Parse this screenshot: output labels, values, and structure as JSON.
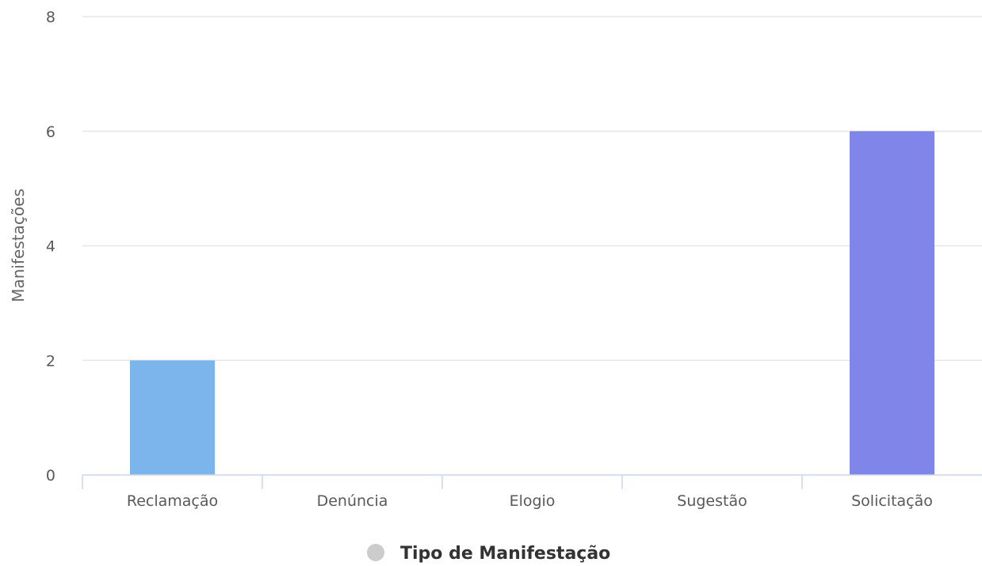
{
  "chart_data": {
    "type": "bar",
    "categories": [
      "Reclamação",
      "Denúncia",
      "Elogio",
      "Sugestão",
      "Solicitação"
    ],
    "values": [
      2,
      0,
      0,
      0,
      6
    ],
    "bar_colors": [
      "#7cb5ec",
      "#7cb5ec",
      "#7cb5ec",
      "#7cb5ec",
      "#8085e9"
    ],
    "ylabel": "Manifestações",
    "xlabel": "",
    "ylim": [
      0,
      8
    ],
    "yticks": [
      0,
      2,
      4,
      6,
      8
    ],
    "grid": true,
    "legend": {
      "entries": [
        {
          "name": "Tipo de Manifestação",
          "color": "#cccccc"
        }
      ],
      "placement": "bottom-center"
    }
  },
  "colors": {
    "grid": "#e6e6e6",
    "axis": "#ccd6eb"
  }
}
